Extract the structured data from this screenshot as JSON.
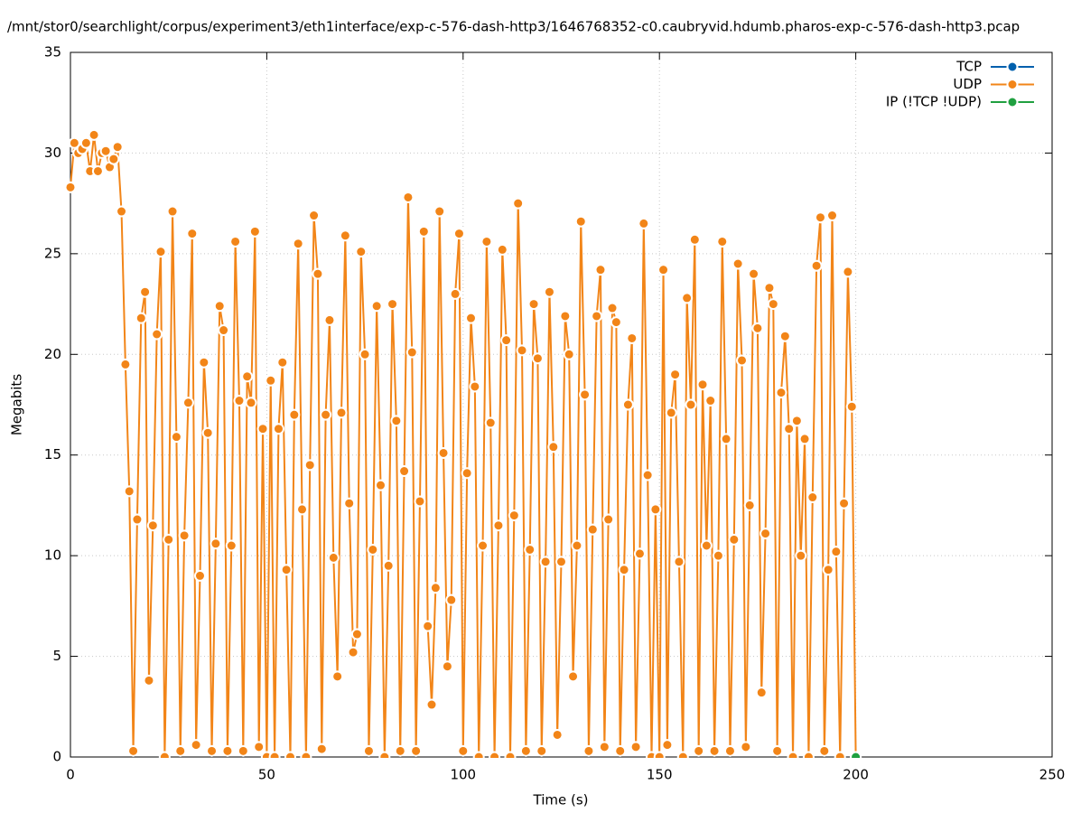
{
  "chart_data": {
    "type": "line",
    "title": "/mnt/stor0/searchlight/corpus/experiment3/eth1interface/exp-c-576-dash-http3/1646768352-c0.caubryvid.hdumb.pharos-exp-c-576-dash-http3.pcap",
    "xlabel": "Time (s)",
    "ylabel": "Megabits",
    "xlim": [
      0,
      250
    ],
    "xticks": [
      0,
      50,
      100,
      150,
      200,
      250
    ],
    "ylim": [
      0,
      35
    ],
    "yticks": [
      0,
      5,
      10,
      15,
      20,
      25,
      30,
      35
    ],
    "grid": true,
    "legend": "top-right",
    "series": [
      {
        "name": "TCP",
        "color": "#0060ad",
        "x": [],
        "values": []
      },
      {
        "name": "UDP",
        "color": "#f28518",
        "x": [
          0,
          1,
          2,
          3,
          4,
          5,
          6,
          7,
          8,
          9,
          10,
          11,
          12,
          13,
          14,
          15,
          16,
          17,
          18,
          19,
          20,
          21,
          22,
          23,
          24,
          25,
          26,
          27,
          28,
          29,
          30,
          31,
          32,
          33,
          34,
          35,
          36,
          37,
          38,
          39,
          40,
          41,
          42,
          43,
          44,
          45,
          46,
          47,
          48,
          49,
          50,
          51,
          52,
          53,
          54,
          55,
          56,
          57,
          58,
          59,
          60,
          61,
          62,
          63,
          64,
          65,
          66,
          67,
          68,
          69,
          70,
          71,
          72,
          73,
          74,
          75,
          76,
          77,
          78,
          79,
          80,
          81,
          82,
          83,
          84,
          85,
          86,
          87,
          88,
          89,
          90,
          91,
          92,
          93,
          94,
          95,
          96,
          97,
          98,
          99,
          100,
          101,
          102,
          103,
          104,
          105,
          106,
          107,
          108,
          109,
          110,
          111,
          112,
          113,
          114,
          115,
          116,
          117,
          118,
          119,
          120,
          121,
          122,
          123,
          124,
          125,
          126,
          127,
          128,
          129,
          130,
          131,
          132,
          133,
          134,
          135,
          136,
          137,
          138,
          139,
          140,
          141,
          142,
          143,
          144,
          145,
          146,
          147,
          148,
          149,
          150,
          151,
          152,
          153,
          154,
          155,
          156,
          157,
          158,
          159,
          160,
          161,
          162,
          163,
          164,
          165,
          166,
          167,
          168,
          169,
          170,
          171,
          172,
          173,
          174,
          175,
          176,
          177,
          178,
          179,
          180,
          181,
          182,
          183,
          184,
          185,
          186,
          187,
          188,
          189,
          190,
          191,
          192,
          193,
          194,
          195,
          196,
          197,
          198,
          199,
          200
        ],
        "values": [
          28.3,
          30.5,
          30.0,
          30.2,
          30.5,
          29.1,
          30.9,
          29.1,
          30.0,
          30.1,
          29.3,
          29.7,
          30.3,
          27.1,
          19.5,
          13.2,
          0.3,
          11.8,
          21.8,
          23.1,
          3.8,
          11.5,
          21.0,
          25.1,
          0,
          10.8,
          27.1,
          15.9,
          0.3,
          11.0,
          17.6,
          26.0,
          0.6,
          9.0,
          19.6,
          16.1,
          0.3,
          10.6,
          22.4,
          21.2,
          0.3,
          10.5,
          25.6,
          17.7,
          0.3,
          18.9,
          17.6,
          26.1,
          0.5,
          16.3,
          0,
          18.7,
          0,
          16.3,
          19.6,
          9.3,
          0,
          17.0,
          25.5,
          12.3,
          0,
          14.5,
          26.9,
          24.0,
          0.4,
          17.0,
          21.7,
          9.9,
          4.0,
          17.1,
          25.9,
          12.6,
          5.2,
          6.1,
          25.1,
          20.0,
          0.3,
          10.3,
          22.4,
          13.5,
          0,
          9.5,
          22.5,
          16.7,
          0.3,
          14.2,
          27.8,
          20.1,
          0.3,
          12.7,
          26.1,
          6.5,
          2.6,
          8.4,
          27.1,
          15.1,
          4.5,
          7.8,
          23.0,
          26.0,
          0.3,
          14.1,
          21.8,
          18.4,
          0,
          10.5,
          25.6,
          16.6,
          0,
          11.5,
          25.2,
          20.7,
          0,
          12.0,
          27.5,
          20.2,
          0.3,
          10.3,
          22.5,
          19.8,
          0.3,
          9.7,
          23.1,
          15.4,
          1.1,
          9.7,
          21.9,
          20.0,
          4.0,
          10.5,
          26.6,
          18.0,
          0.3,
          11.3,
          21.9,
          24.2,
          0.5,
          11.8,
          22.3,
          21.6,
          0.3,
          9.3,
          17.5,
          20.8,
          0.5,
          10.1,
          26.5,
          14.0,
          0,
          12.3,
          0,
          24.2,
          0.6,
          17.1,
          19.0,
          9.7,
          0,
          22.8,
          17.5,
          25.7,
          0.3,
          18.5,
          10.5,
          17.7,
          0.3,
          10.0,
          25.6,
          15.8,
          0.3,
          10.8,
          24.5,
          19.7,
          0.5,
          12.5,
          24.0,
          21.3,
          3.2,
          11.1,
          23.3,
          22.5,
          0.3,
          18.1,
          20.9,
          16.3,
          0,
          16.7,
          10.0,
          15.8,
          0,
          12.9,
          24.4,
          26.8,
          0.3,
          9.3,
          26.9,
          10.2,
          0,
          12.6,
          24.1,
          17.4,
          0
        ]
      },
      {
        "name": "IP (!TCP  !UDP)",
        "color": "#20a040",
        "x": [
          200
        ],
        "values": [
          0
        ]
      }
    ]
  }
}
